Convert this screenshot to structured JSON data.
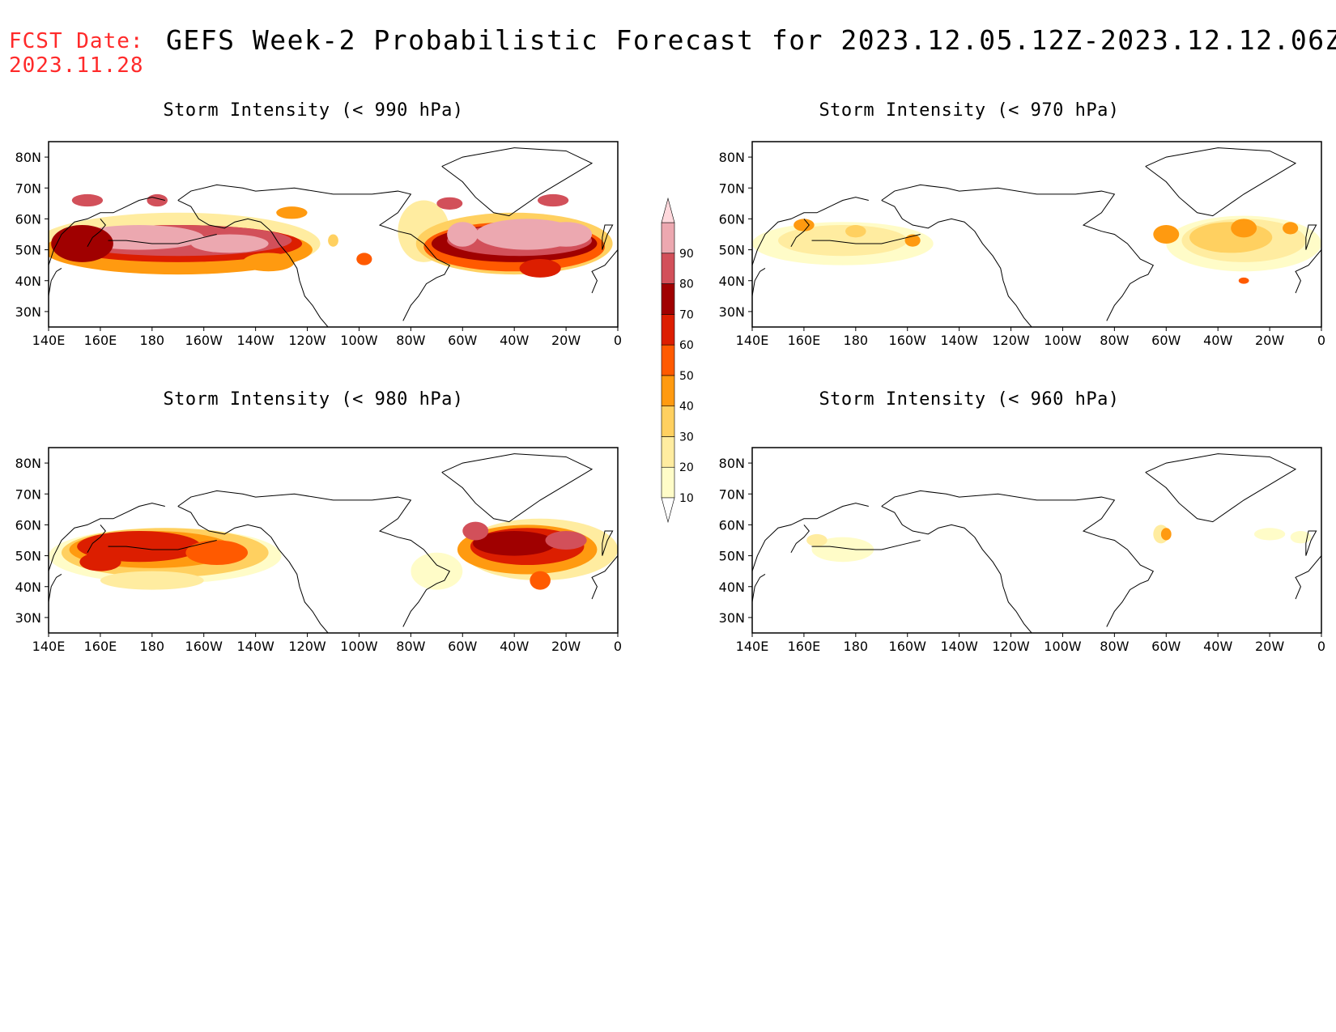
{
  "header": {
    "fcst_label": "FCST Date:",
    "fcst_date": "2023.11.28",
    "title": "GEFS Week-2 Probabilistic Forecast for 2023.12.05.12Z-2023.12.12.06Z"
  },
  "axes": {
    "lat_ticks": [
      "80N",
      "70N",
      "60N",
      "50N",
      "40N",
      "30N"
    ],
    "lon_ticks": [
      "140E",
      "160E",
      "180",
      "160W",
      "140W",
      "120W",
      "100W",
      "80W",
      "60W",
      "40W",
      "20W",
      "0"
    ]
  },
  "panels": [
    {
      "id": "p990",
      "title": "Storm Intensity (< 990 hPa)"
    },
    {
      "id": "p970",
      "title": "Storm Intensity (< 970 hPa)"
    },
    {
      "id": "p980",
      "title": "Storm Intensity (< 980 hPa)"
    },
    {
      "id": "p960",
      "title": "Storm Intensity (< 960 hPa)"
    }
  ],
  "colorbar": {
    "levels": [
      "10",
      "20",
      "30",
      "40",
      "50",
      "60",
      "70",
      "80",
      "90"
    ],
    "colors": [
      "#fffcc8",
      "#ffeca0",
      "#ffd060",
      "#ff9a10",
      "#ff5a00",
      "#dc1e00",
      "#a00000",
      "#d2505a",
      "#eca8b0",
      "#ffd8dc"
    ]
  }
}
